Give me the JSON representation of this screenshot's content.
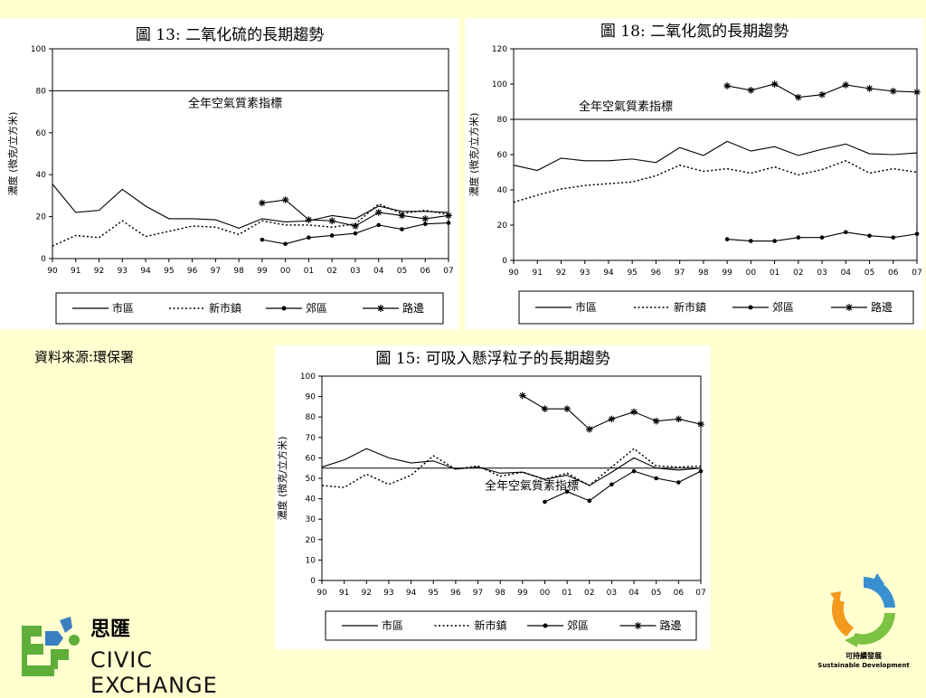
{
  "source_note": "資料來源:環保署",
  "org": {
    "name_cn": "思匯",
    "name_en": "CIVIC EXCHANGE"
  },
  "sd_logo": {
    "cn": "可持續發展",
    "en": "Sustainable Development",
    "icon": "recycle-arrows-icon"
  },
  "colors": {
    "background": "#FFFFD0",
    "panel": "#FFFFFF",
    "line": "#000000"
  },
  "chart_data": [
    {
      "type": "line",
      "title": "圖 13: 二氧化硫的長期趨勢",
      "ylabel": "濃度 (微克/立方米)",
      "xlabel": "",
      "categories": [
        "90",
        "91",
        "92",
        "93",
        "94",
        "95",
        "96",
        "97",
        "98",
        "99",
        "00",
        "01",
        "02",
        "03",
        "04",
        "05",
        "06",
        "07"
      ],
      "ylim": [
        0,
        100
      ],
      "yticks": [
        0,
        20,
        40,
        60,
        80,
        100
      ],
      "reference": {
        "value": 80,
        "label": "全年空氣質素指標"
      },
      "legend": [
        "市區",
        "新市鎮",
        "郊區",
        "路邊"
      ],
      "series": [
        {
          "name": "市區",
          "style": "solid",
          "values": [
            35.5,
            22,
            23,
            33,
            25,
            19,
            19,
            18.5,
            14.5,
            19,
            17.5,
            18,
            20.5,
            19,
            25,
            22.5,
            22.5,
            22
          ]
        },
        {
          "name": "新市鎮",
          "style": "dotted",
          "values": [
            6,
            11,
            10,
            18,
            10.5,
            13,
            15.5,
            15,
            11.5,
            18,
            16,
            16,
            15,
            16.5,
            26,
            21.5,
            23,
            21
          ]
        },
        {
          "name": "郊區",
          "style": "dot-marker",
          "values": [
            null,
            null,
            null,
            null,
            null,
            null,
            null,
            null,
            null,
            9,
            7,
            10,
            11,
            12,
            16,
            14,
            16.5,
            17
          ]
        },
        {
          "name": "路邊",
          "style": "star-marker",
          "values": [
            null,
            null,
            null,
            null,
            null,
            null,
            null,
            null,
            null,
            26.5,
            28,
            18.5,
            18,
            15.5,
            22,
            20.5,
            19,
            20.5
          ]
        }
      ]
    },
    {
      "type": "line",
      "title": "圖 18: 二氧化氮的長期趨勢",
      "ylabel": "濃度 (微克/立方米)",
      "xlabel": "",
      "categories": [
        "90",
        "91",
        "92",
        "93",
        "94",
        "95",
        "96",
        "97",
        "98",
        "99",
        "00",
        "01",
        "02",
        "03",
        "04",
        "05",
        "06",
        "07"
      ],
      "ylim": [
        0,
        120
      ],
      "yticks": [
        0,
        20,
        40,
        60,
        80,
        100,
        120
      ],
      "reference": {
        "value": 80,
        "label": "全年空氣質素指標"
      },
      "legend": [
        "市區",
        "新市鎮",
        "郊區",
        "路邊"
      ],
      "series": [
        {
          "name": "市區",
          "style": "solid",
          "values": [
            54,
            51,
            58,
            56.5,
            56.5,
            57.5,
            55.5,
            64,
            59.5,
            67.5,
            62,
            64.5,
            59.5,
            63,
            66,
            60.5,
            60,
            61
          ]
        },
        {
          "name": "新市鎮",
          "style": "dotted",
          "values": [
            33,
            37,
            40.5,
            42.5,
            43.5,
            44.5,
            48,
            54,
            50.5,
            52,
            49.5,
            53,
            48.5,
            51.5,
            56.5,
            49.5,
            52,
            50
          ]
        },
        {
          "name": "郊區",
          "style": "dot-marker",
          "values": [
            null,
            null,
            null,
            null,
            null,
            null,
            null,
            null,
            null,
            12,
            11,
            11,
            13,
            13,
            16,
            14,
            13,
            15
          ]
        },
        {
          "name": "路邊",
          "style": "star-marker",
          "values": [
            null,
            null,
            null,
            null,
            null,
            null,
            null,
            null,
            null,
            99,
            96.5,
            100,
            92.5,
            94,
            99.5,
            97.5,
            96,
            95.5
          ]
        }
      ]
    },
    {
      "type": "line",
      "title": "圖 15: 可吸入懸浮粒子的長期趨勢",
      "ylabel": "濃度 (微克/立方米)",
      "xlabel": "",
      "categories": [
        "90",
        "91",
        "92",
        "93",
        "94",
        "95",
        "96",
        "97",
        "98",
        "99",
        "00",
        "01",
        "02",
        "03",
        "04",
        "05",
        "06",
        "07"
      ],
      "ylim": [
        0,
        100
      ],
      "yticks": [
        0,
        10,
        20,
        30,
        40,
        50,
        60,
        70,
        80,
        90,
        100
      ],
      "reference": {
        "value": 55,
        "label": "全年空氣質素指標"
      },
      "legend": [
        "市區",
        "新市鎮",
        "郊區",
        "路邊"
      ],
      "series": [
        {
          "name": "市區",
          "style": "solid",
          "values": [
            55.5,
            59,
            64.5,
            60,
            57.5,
            58.5,
            54.5,
            55.5,
            52.5,
            53,
            49.5,
            51.5,
            46.5,
            53,
            60,
            55,
            54,
            55
          ]
        },
        {
          "name": "新市鎮",
          "style": "dotted",
          "values": [
            46.5,
            45.5,
            52,
            47,
            51.5,
            61,
            54.5,
            56,
            51,
            53,
            49.5,
            52.5,
            46.5,
            55.5,
            64.5,
            56,
            55.5,
            56
          ]
        },
        {
          "name": "郊區",
          "style": "dot-marker",
          "values": [
            null,
            null,
            null,
            null,
            null,
            null,
            null,
            null,
            null,
            null,
            38.5,
            43.5,
            39,
            47,
            53.5,
            50,
            48,
            53.5
          ]
        },
        {
          "name": "路邊",
          "style": "star-marker",
          "values": [
            null,
            null,
            null,
            null,
            null,
            null,
            null,
            null,
            null,
            90.5,
            84,
            84,
            74,
            79,
            82.5,
            78,
            79,
            76.5
          ]
        }
      ]
    }
  ]
}
